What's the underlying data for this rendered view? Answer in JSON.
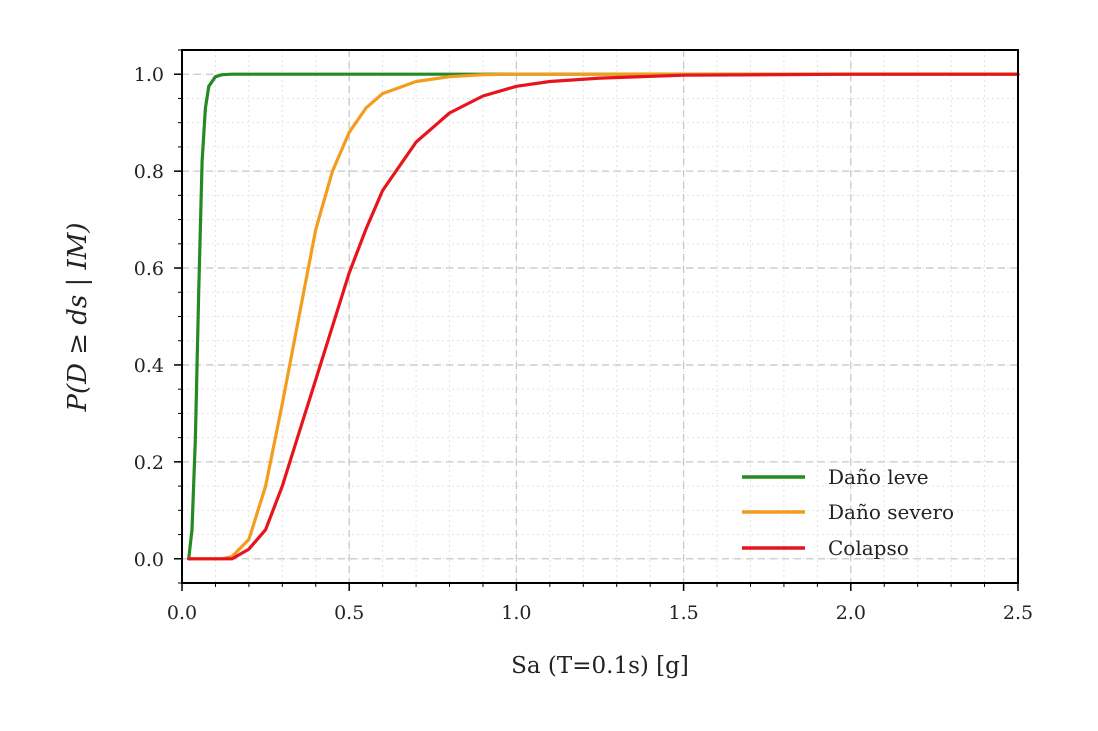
{
  "chart_data": {
    "type": "line",
    "xlabel": "Sa (T=0.1s) [g]",
    "ylabel": "P(D ≥ ds | IM)",
    "xlim": [
      0,
      2.5
    ],
    "ylim": [
      -0.05,
      1.05
    ],
    "x_ticks": [
      "0.0",
      "0.5",
      "1.0",
      "1.5",
      "2.0",
      "2.5"
    ],
    "x_tick_values": [
      0,
      0.5,
      1.0,
      1.5,
      2.0,
      2.5
    ],
    "y_ticks": [
      "0.0",
      "0.2",
      "0.4",
      "0.6",
      "0.8",
      "1.0"
    ],
    "y_tick_values": [
      0,
      0.2,
      0.4,
      0.6,
      0.8,
      1.0
    ],
    "grid": true,
    "legend_position": "lower-right",
    "x": [
      0.02,
      0.03,
      0.04,
      0.05,
      0.06,
      0.07,
      0.08,
      0.1,
      0.12,
      0.15,
      0.2,
      0.25,
      0.3,
      0.35,
      0.4,
      0.45,
      0.5,
      0.55,
      0.6,
      0.7,
      0.8,
      0.9,
      1.0,
      1.1,
      1.25,
      1.5,
      2.0,
      2.5
    ],
    "series": [
      {
        "name": "Daño leve",
        "color": "#228b22",
        "values": [
          0.0,
          0.06,
          0.25,
          0.55,
          0.82,
          0.93,
          0.975,
          0.995,
          0.999,
          1.0,
          1.0,
          1.0,
          1.0,
          1.0,
          1.0,
          1.0,
          1.0,
          1.0,
          1.0,
          1.0,
          1.0,
          1.0,
          1.0,
          1.0,
          1.0,
          1.0,
          1.0,
          1.0
        ]
      },
      {
        "name": "Daño severo",
        "color": "#f39c1d",
        "values": [
          0.0,
          0.0,
          0.0,
          0.0,
          0.0,
          0.0,
          0.0,
          0.0,
          0.0,
          0.005,
          0.04,
          0.15,
          0.32,
          0.5,
          0.68,
          0.8,
          0.88,
          0.93,
          0.96,
          0.985,
          0.995,
          0.999,
          1.0,
          1.0,
          1.0,
          1.0,
          1.0,
          1.0
        ]
      },
      {
        "name": "Colapso",
        "color": "#e8141c",
        "values": [
          0.0,
          0.0,
          0.0,
          0.0,
          0.0,
          0.0,
          0.0,
          0.0,
          0.0,
          0.0,
          0.02,
          0.06,
          0.15,
          0.26,
          0.37,
          0.48,
          0.59,
          0.68,
          0.76,
          0.86,
          0.92,
          0.955,
          0.975,
          0.985,
          0.992,
          0.998,
          1.0,
          1.0
        ]
      }
    ]
  }
}
